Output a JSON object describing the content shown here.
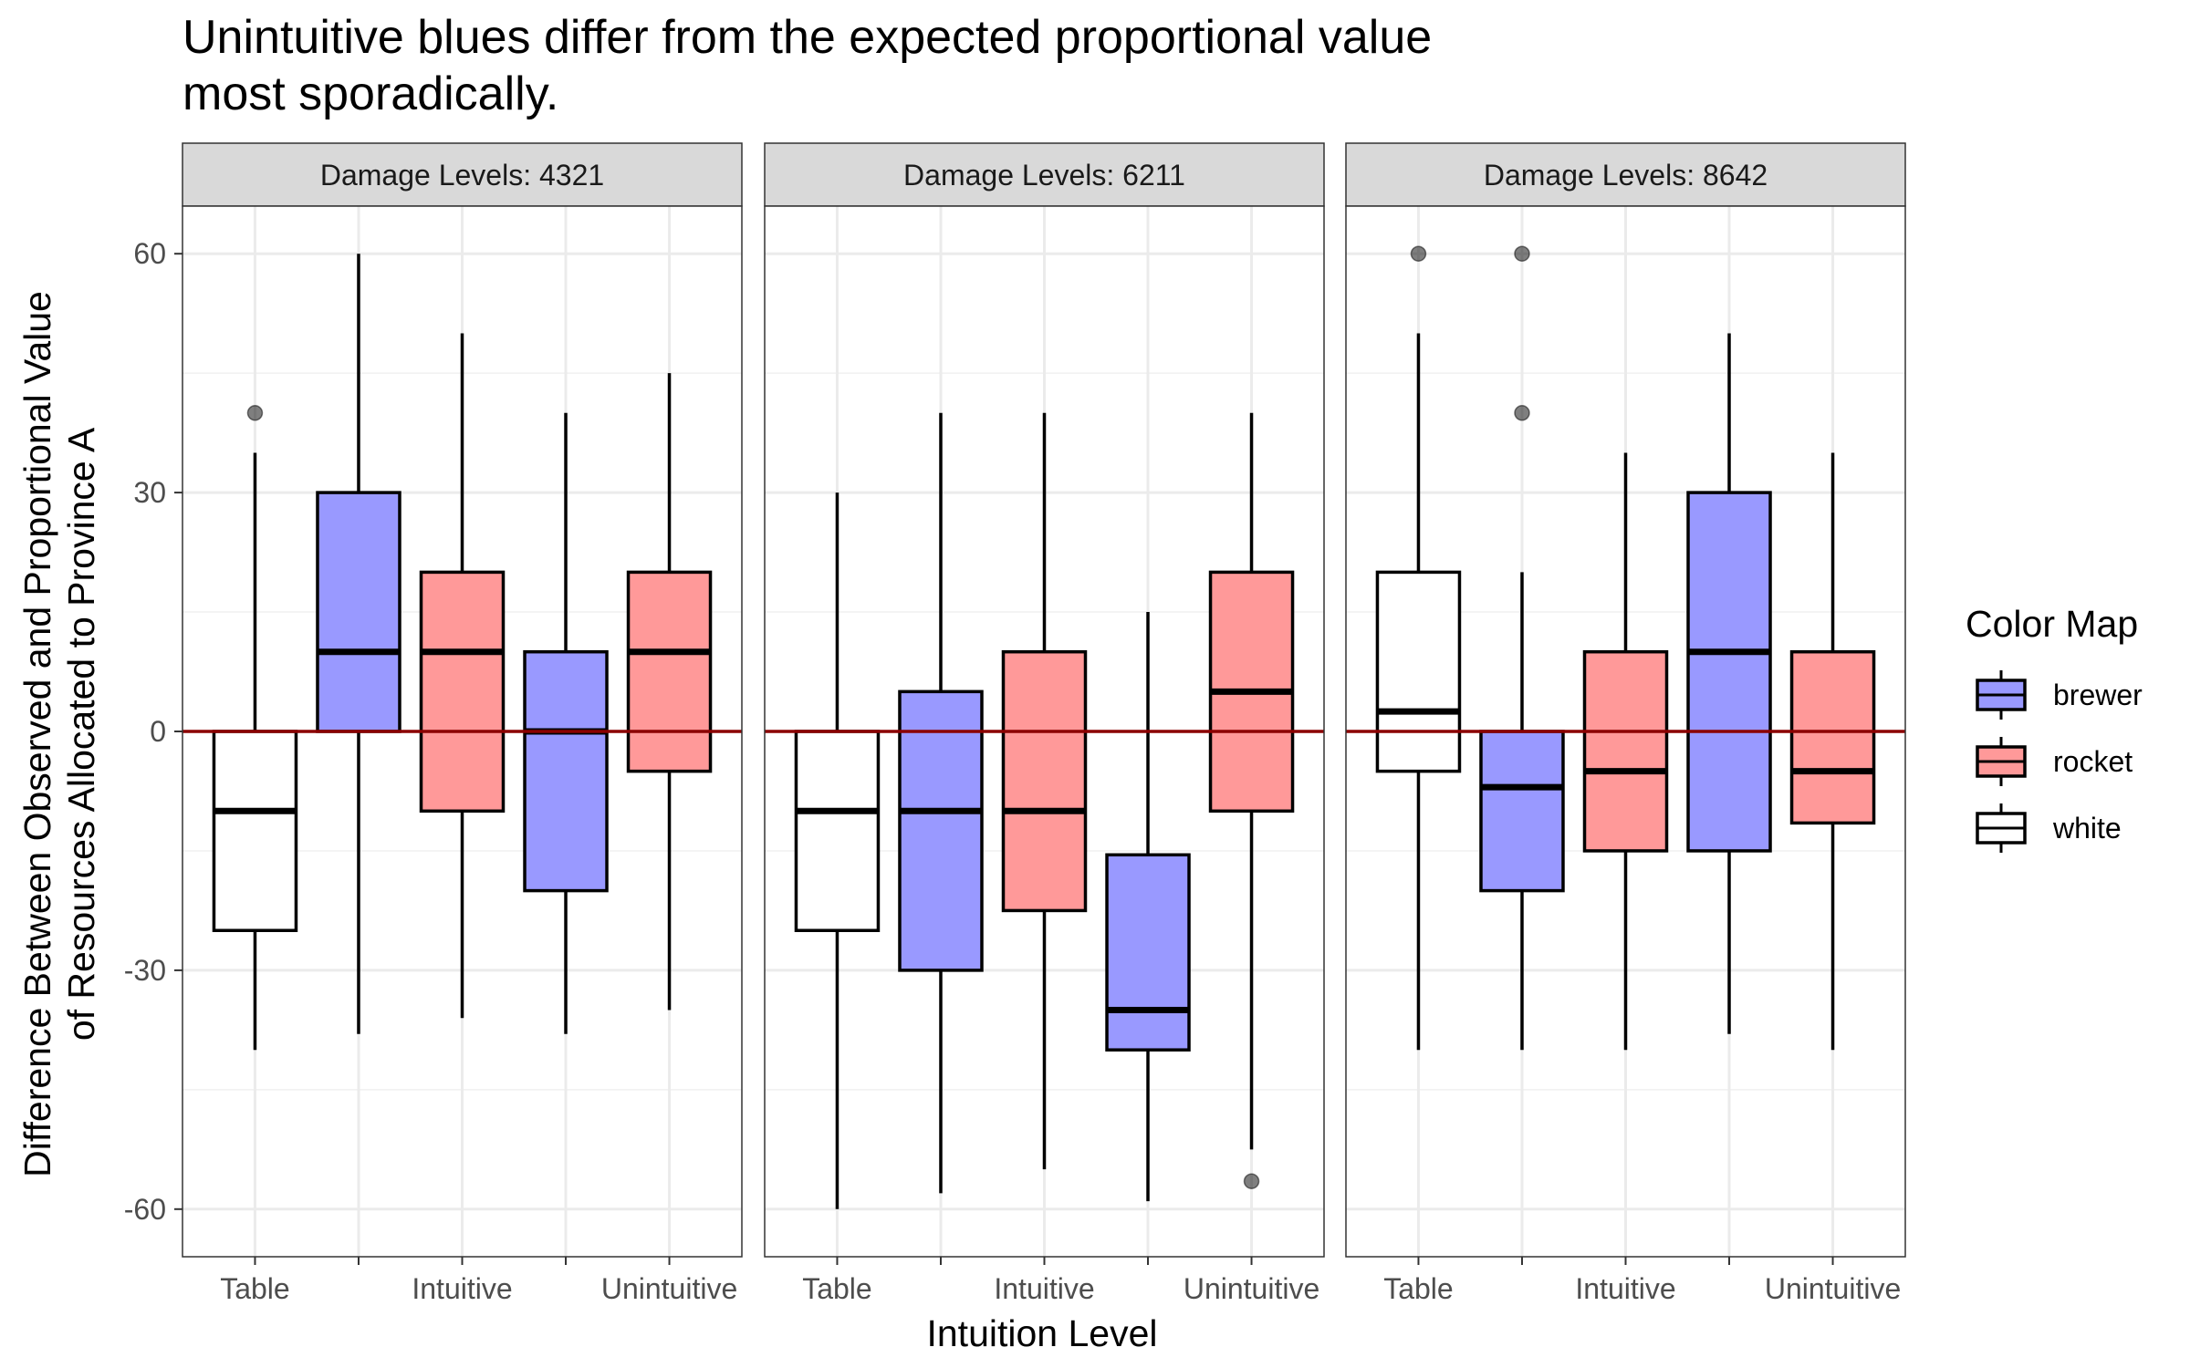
{
  "title_lines": [
    "Unintuitive blues differ from the expected proportional value",
    "most sporadically."
  ],
  "chart_data": {
    "type": "box",
    "title": "Unintuitive blues differ from the expected proportional value most sporadically.",
    "xlabel": "Intuition Level",
    "ylabel_lines": [
      "Difference Between Observed and Proportional Value",
      "of Resources Allocated to Province A"
    ],
    "ylim": [
      -66,
      66
    ],
    "y_ticks": [
      -60,
      -30,
      0,
      30,
      60
    ],
    "y_tick_labels": [
      "-60",
      "-30",
      "0",
      "30",
      "60"
    ],
    "categories": [
      "Table",
      "",
      "Intuitive",
      "",
      "Unintuitive"
    ],
    "x_tick_labels": [
      "Table",
      "",
      "Intuitive",
      "",
      "Unintuitive"
    ],
    "reference_line": {
      "y": 0,
      "color": "#8B0000"
    },
    "grid": true,
    "legend": {
      "title": "Color Map",
      "position": "right",
      "entries": [
        {
          "name": "brewer",
          "fill": "#9999FF"
        },
        {
          "name": "rocket",
          "fill": "#FF9999"
        },
        {
          "name": "white",
          "fill": "#FFFFFF"
        }
      ]
    },
    "panels": [
      {
        "label": "Damage Levels: 4321",
        "boxes": [
          {
            "colormap": "white",
            "whisker_low": -40,
            "q1": -25,
            "median": -10,
            "q3": 0,
            "whisker_high": 35,
            "outliers": [
              40
            ]
          },
          {
            "colormap": "brewer",
            "whisker_low": -38,
            "q1": 0,
            "median": 10,
            "q3": 30,
            "whisker_high": 60,
            "outliers": []
          },
          {
            "colormap": "rocket",
            "whisker_low": -36,
            "q1": -10,
            "median": 10,
            "q3": 20,
            "whisker_high": 50,
            "outliers": []
          },
          {
            "colormap": "brewer",
            "whisker_low": -38,
            "q1": -20,
            "median": 0,
            "q3": 10,
            "whisker_high": 40,
            "outliers": []
          },
          {
            "colormap": "rocket",
            "whisker_low": -35,
            "q1": -5,
            "median": 10,
            "q3": 20,
            "whisker_high": 45,
            "outliers": []
          }
        ]
      },
      {
        "label": "Damage Levels: 6211",
        "boxes": [
          {
            "colormap": "white",
            "whisker_low": -60,
            "q1": -25,
            "median": -10,
            "q3": 0,
            "whisker_high": 30,
            "outliers": []
          },
          {
            "colormap": "brewer",
            "whisker_low": -58,
            "q1": -30,
            "median": -10,
            "q3": 5,
            "whisker_high": 40,
            "outliers": []
          },
          {
            "colormap": "rocket",
            "whisker_low": -55,
            "q1": -22.5,
            "median": -10,
            "q3": 10,
            "whisker_high": 40,
            "outliers": []
          },
          {
            "colormap": "brewer",
            "whisker_low": -59,
            "q1": -40,
            "median": -35,
            "q3": -15.5,
            "whisker_high": 15,
            "outliers": []
          },
          {
            "colormap": "rocket",
            "whisker_low": -52.5,
            "q1": -10,
            "median": 5,
            "q3": 20,
            "whisker_high": 40,
            "outliers": [
              -56.5
            ]
          }
        ]
      },
      {
        "label": "Damage Levels: 8642",
        "boxes": [
          {
            "colormap": "white",
            "whisker_low": -40,
            "q1": -5,
            "median": 2.5,
            "q3": 20,
            "whisker_high": 50,
            "outliers": [
              60
            ]
          },
          {
            "colormap": "brewer",
            "whisker_low": -40,
            "q1": -20,
            "median": -7,
            "q3": 0,
            "whisker_high": 20,
            "outliers": [
              40,
              60
            ]
          },
          {
            "colormap": "rocket",
            "whisker_low": -40,
            "q1": -15,
            "median": -5,
            "q3": 10,
            "whisker_high": 35,
            "outliers": []
          },
          {
            "colormap": "brewer",
            "whisker_low": -38,
            "q1": -15,
            "median": 10,
            "q3": 30,
            "whisker_high": 50,
            "outliers": []
          },
          {
            "colormap": "rocket",
            "whisker_low": -40,
            "q1": -11.5,
            "median": -5,
            "q3": 10,
            "whisker_high": 35,
            "outliers": []
          }
        ]
      }
    ]
  }
}
